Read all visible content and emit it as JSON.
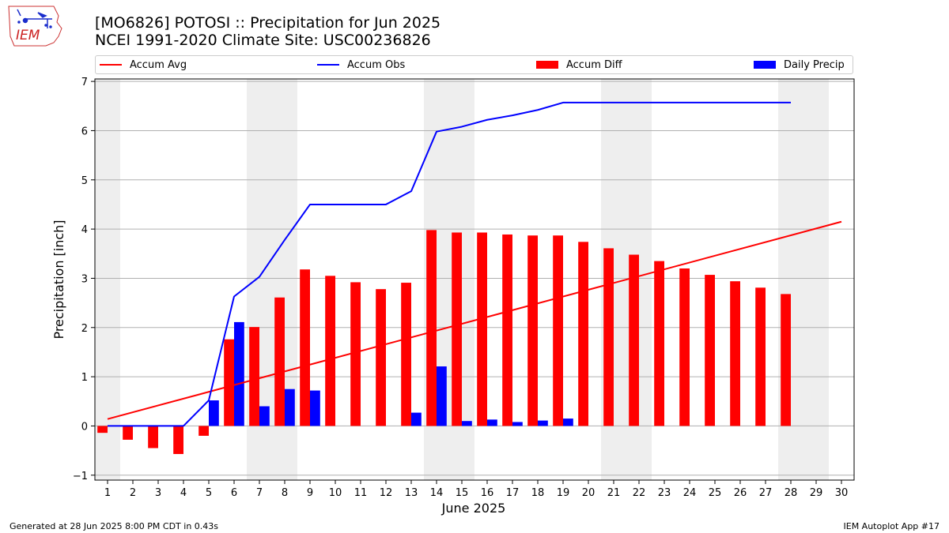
{
  "header": {
    "title_line1": "[MO6826] POTOSI :: Precipitation for Jun 2025",
    "title_line2": "NCEI 1991-2020 Climate Site: USC00236826",
    "logo_text": "IEM"
  },
  "footer": {
    "left": "Generated at 28 Jun 2025 8:00 PM CDT in 0.43s",
    "right": "IEM Autoplot App #17"
  },
  "legend": {
    "items": [
      {
        "label": "Accum Avg",
        "kind": "line",
        "color": "#ff0000"
      },
      {
        "label": "Accum Obs",
        "kind": "line",
        "color": "#0000ff"
      },
      {
        "label": "Accum Diff",
        "kind": "bar",
        "color": "#ff0000"
      },
      {
        "label": "Daily Precip",
        "kind": "bar",
        "color": "#0000ff"
      }
    ]
  },
  "chart_data": {
    "type": "bar",
    "xlabel": "June 2025",
    "ylabel": "Precipitation [inch]",
    "xlim": [
      0.5,
      30.5
    ],
    "ylim": [
      -1.1,
      7.05
    ],
    "yticks": [
      -1,
      0,
      1,
      2,
      3,
      4,
      5,
      6,
      7
    ],
    "xticks": [
      1,
      2,
      3,
      4,
      5,
      6,
      7,
      8,
      9,
      10,
      11,
      12,
      13,
      14,
      15,
      16,
      17,
      18,
      19,
      20,
      21,
      22,
      23,
      24,
      25,
      26,
      27,
      28,
      29,
      30
    ],
    "grid": "horizontal",
    "legend_position": "top",
    "weekend_shading": [
      [
        0.5,
        1.5
      ],
      [
        6.5,
        8.5
      ],
      [
        13.5,
        15.5
      ],
      [
        20.5,
        22.5
      ],
      [
        27.5,
        29.5
      ]
    ],
    "shading_color": "#eeeeee",
    "series": [
      {
        "name": "Accum Avg",
        "kind": "line",
        "color": "#ff0000",
        "x": [
          1,
          30
        ],
        "values": [
          0.14,
          4.15
        ]
      },
      {
        "name": "Accum Obs",
        "kind": "line",
        "color": "#0000ff",
        "x": [
          1,
          2,
          3,
          4,
          5,
          6,
          7,
          8,
          9,
          10,
          11,
          12,
          13,
          14,
          15,
          16,
          17,
          18,
          19,
          20,
          21,
          22,
          23,
          24,
          25,
          26,
          27,
          28
        ],
        "values": [
          0,
          0,
          0,
          0,
          0.52,
          2.63,
          3.03,
          3.78,
          4.5,
          4.5,
          4.5,
          4.5,
          4.77,
          5.98,
          6.08,
          6.22,
          6.31,
          6.42,
          6.57,
          6.57,
          6.57,
          6.57,
          6.57,
          6.57,
          6.57,
          6.57,
          6.57,
          6.57
        ]
      },
      {
        "name": "Accum Diff",
        "kind": "bar",
        "color": "#ff0000",
        "x": [
          1,
          2,
          3,
          4,
          5,
          6,
          7,
          8,
          9,
          10,
          11,
          12,
          13,
          14,
          15,
          16,
          17,
          18,
          19,
          20,
          21,
          22,
          23,
          24,
          25,
          26,
          27,
          28
        ],
        "values": [
          -0.14,
          -0.28,
          -0.45,
          -0.57,
          -0.2,
          1.76,
          2.01,
          2.61,
          3.18,
          3.05,
          2.92,
          2.78,
          2.91,
          3.98,
          3.93,
          3.93,
          3.89,
          3.87,
          3.87,
          3.74,
          3.61,
          3.48,
          3.35,
          3.2,
          3.07,
          2.94,
          2.81,
          2.68
        ]
      },
      {
        "name": "Daily Precip",
        "kind": "bar",
        "color": "#0000ff",
        "x": [
          1,
          2,
          3,
          4,
          5,
          6,
          7,
          8,
          9,
          10,
          11,
          12,
          13,
          14,
          15,
          16,
          17,
          18,
          19,
          20,
          21,
          22,
          23,
          24,
          25,
          26,
          27,
          28
        ],
        "values": [
          0,
          0,
          0,
          0,
          0.52,
          2.11,
          0.4,
          0.75,
          0.72,
          0,
          0,
          0,
          0.27,
          1.21,
          0.1,
          0.13,
          0.08,
          0.11,
          0.15,
          0,
          0,
          0,
          0,
          0,
          0,
          0,
          0,
          0
        ]
      }
    ]
  }
}
